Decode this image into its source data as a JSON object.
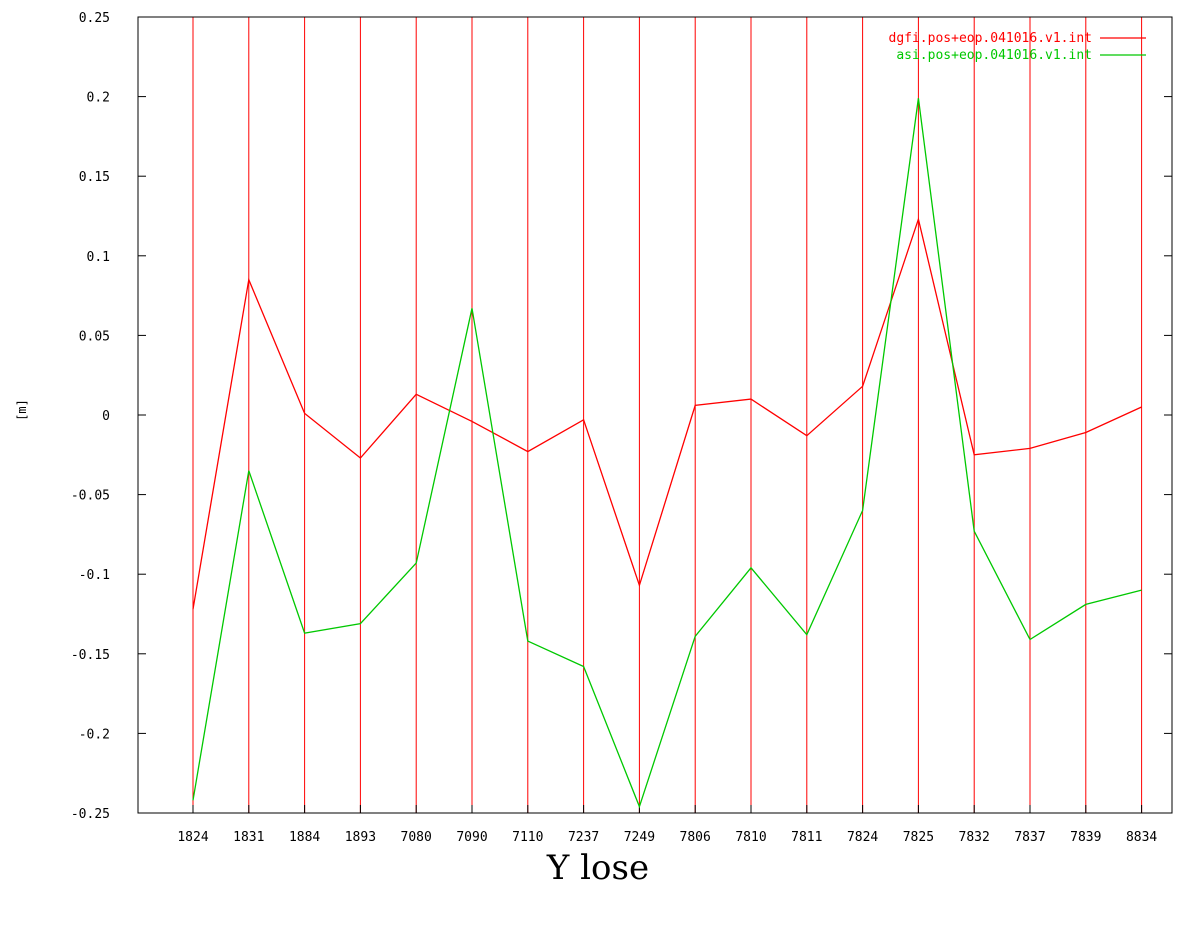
{
  "caption": "Y lose",
  "chart_data": {
    "type": "line",
    "title": "",
    "xlabel": "",
    "ylabel": "[m]",
    "ylim": [
      -0.25,
      0.25
    ],
    "yticks": [
      -0.25,
      -0.2,
      -0.15,
      -0.1,
      -0.05,
      0,
      0.05,
      0.1,
      0.15,
      0.2,
      0.25
    ],
    "ytick_labels": [
      "-0.25",
      "-0.2",
      "-0.15",
      "-0.1",
      "-0.05",
      "0",
      "0.05",
      "0.1",
      "0.15",
      "0.2",
      "0.25"
    ],
    "categories": [
      "1824",
      "1831",
      "1884",
      "1893",
      "7080",
      "7090",
      "7110",
      "7237",
      "7249",
      "7806",
      "7810",
      "7811",
      "7824",
      "7825",
      "7832",
      "7837",
      "7839",
      "8834"
    ],
    "xtick_labels": [
      "1824",
      "1831",
      "1884",
      "1893",
      "7080",
      "7090",
      "7110",
      "7237",
      "7249",
      "7806",
      "7810",
      "7811",
      "7824",
      "7825",
      "7832",
      "7837",
      "7839",
      "8834"
    ],
    "vertical_gridlines": true,
    "gridline_color": "#ff0000",
    "legend_position": "top-right",
    "series": [
      {
        "name": "dgfi.pos+eop.041016.v1.int",
        "color": "#ff0000",
        "values": [
          -0.122,
          0.085,
          0.001,
          -0.027,
          0.013,
          -0.004,
          -0.023,
          -0.003,
          -0.107,
          0.006,
          0.01,
          -0.013,
          0.018,
          0.123,
          -0.025,
          -0.021,
          -0.011,
          0.005
        ]
      },
      {
        "name": "asi.pos+eop.041016.v1.int",
        "color": "#00c800",
        "values": [
          -0.242,
          -0.035,
          -0.137,
          -0.131,
          -0.093,
          0.067,
          -0.142,
          -0.158,
          -0.246,
          -0.139,
          -0.096,
          -0.138,
          -0.06,
          0.199,
          -0.073,
          -0.141,
          -0.119,
          -0.11
        ]
      }
    ]
  }
}
